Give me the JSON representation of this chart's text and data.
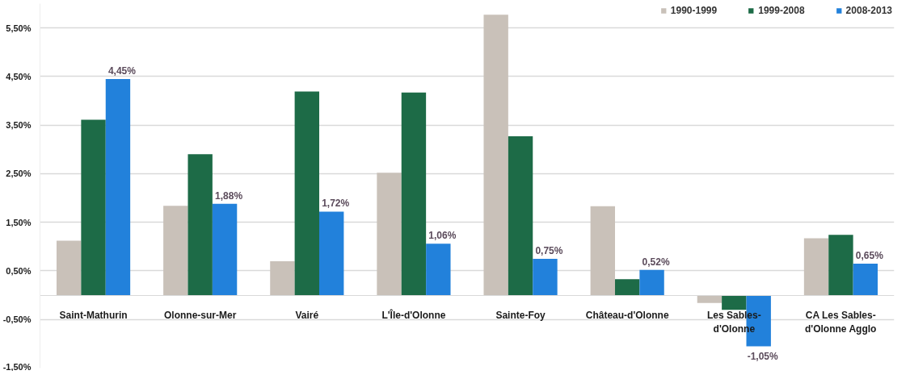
{
  "chart_data": {
    "type": "bar",
    "categories": [
      "Saint-Mathurin",
      "Olonne-sur-Mer",
      "Vairé",
      "L'Île-d'Olonne",
      "Sainte-Foy",
      "Château-d'Olonne",
      "Les Sables-d'Olonne",
      "CA Les Sables-d'Olonne Agglo"
    ],
    "series": [
      {
        "name": "1990-1999",
        "color": "#c9c1b9",
        "values": [
          1.12,
          1.84,
          0.7,
          2.52,
          5.77,
          1.83,
          -0.16,
          1.17
        ]
      },
      {
        "name": "1999-2008",
        "color": "#1d6b47",
        "values": [
          3.61,
          2.9,
          4.19,
          4.17,
          3.27,
          0.33,
          -0.3,
          1.24
        ]
      },
      {
        "name": "2008-2013",
        "color": "#2281db",
        "values": [
          4.45,
          1.88,
          1.72,
          1.06,
          0.75,
          0.52,
          -1.05,
          0.65
        ],
        "value_labels": [
          "4,45%",
          "1,88%",
          "1,72%",
          "1,06%",
          "0,75%",
          "0,52%",
          "-1,05%",
          "0,65%"
        ]
      }
    ],
    "ylim": [
      -1.5,
      6.0
    ],
    "yticks": [
      {
        "value": -1.5,
        "label": "-1,50%"
      },
      {
        "value": -0.5,
        "label": "-0,50%"
      },
      {
        "value": 0.5,
        "label": "0,50%"
      },
      {
        "value": 1.5,
        "label": "1,50%"
      },
      {
        "value": 2.5,
        "label": "2,50%"
      },
      {
        "value": 3.5,
        "label": "3,50%"
      },
      {
        "value": 4.5,
        "label": "4,50%"
      },
      {
        "value": 5.5,
        "label": "5,50%"
      }
    ],
    "grid": "y",
    "legend": "top right"
  }
}
